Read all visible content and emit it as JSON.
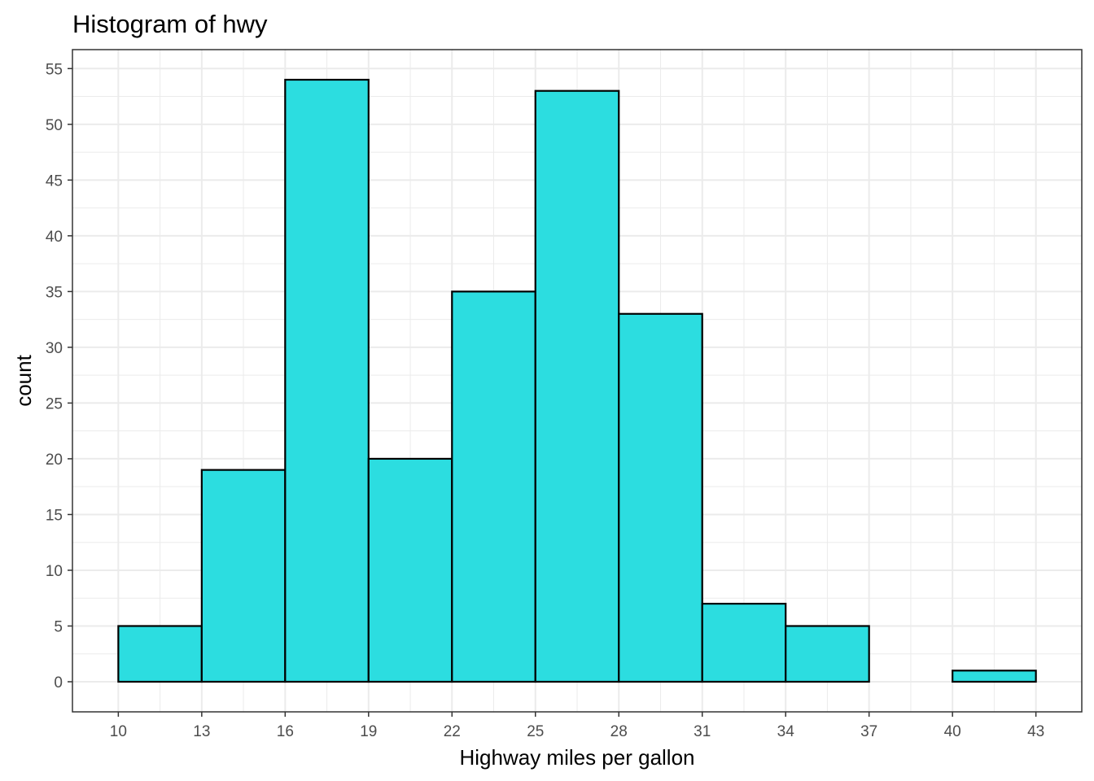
{
  "chart_data": {
    "type": "bar",
    "title": "Histogram of hwy",
    "xlabel": "Highway miles per gallon",
    "ylabel": "count",
    "bins": [
      {
        "x0": 10,
        "x1": 13,
        "count": 5
      },
      {
        "x0": 13,
        "x1": 16,
        "count": 19
      },
      {
        "x0": 16,
        "x1": 19,
        "count": 54
      },
      {
        "x0": 19,
        "x1": 22,
        "count": 20
      },
      {
        "x0": 22,
        "x1": 25,
        "count": 35
      },
      {
        "x0": 25,
        "x1": 28,
        "count": 53
      },
      {
        "x0": 28,
        "x1": 31,
        "count": 33
      },
      {
        "x0": 31,
        "x1": 34,
        "count": 7
      },
      {
        "x0": 34,
        "x1": 37,
        "count": 5
      },
      {
        "x0": 37,
        "x1": 40,
        "count": 0
      },
      {
        "x0": 40,
        "x1": 43,
        "count": 1
      }
    ],
    "x_ticks": [
      "10",
      "13",
      "16",
      "19",
      "22",
      "25",
      "28",
      "31",
      "34",
      "37",
      "40",
      "43"
    ],
    "y_ticks": [
      "0",
      "5",
      "10",
      "15",
      "20",
      "25",
      "30",
      "35",
      "40",
      "45",
      "50",
      "55"
    ],
    "xlim": [
      8.35,
      44.65
    ],
    "ylim": [
      -2.7,
      56.7
    ],
    "grid": true,
    "colors": {
      "bar_fill": "#2cdde0",
      "bar_outline": "#000000",
      "grid": "#ebebeb",
      "panel_border": "#333333",
      "tick_text": "#4d4d4d"
    }
  }
}
